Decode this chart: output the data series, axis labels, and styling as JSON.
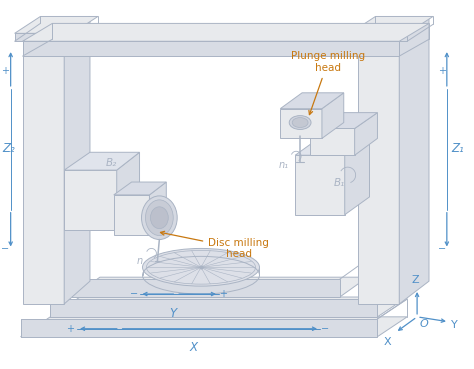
{
  "bg_color": "#ffffff",
  "line_color": "#aab4c4",
  "line_color2": "#c8d0dc",
  "fill_light": "#e8eaed",
  "fill_mid": "#d8dce4",
  "fill_dark": "#c8ccd6",
  "blue_color": "#5090c8",
  "orange_color": "#c87810",
  "labels": {
    "Z2": "Z₂",
    "Z1": "Z₁",
    "B2": "B₂",
    "B1": "B₁",
    "n1": "n₁",
    "n2": "n",
    "X": "X",
    "Y": "Y",
    "Z": "Z",
    "O": "O",
    "plus": "+",
    "minus": "−",
    "plunge": "Plunge milling\nhead",
    "disc": "Disc milling\nhead"
  }
}
